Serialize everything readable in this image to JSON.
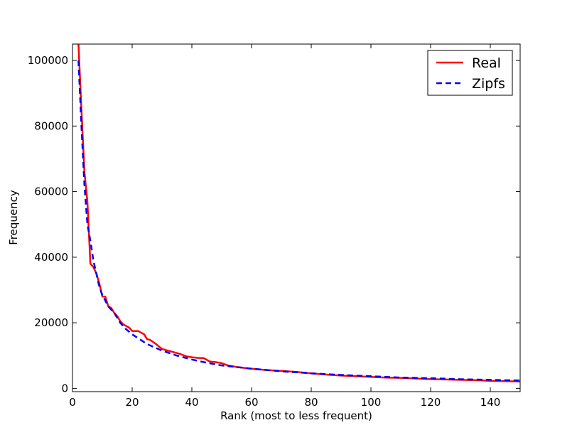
{
  "chart_data": {
    "type": "line",
    "title": "",
    "xlabel": "Rank (most to less frequent)",
    "ylabel": "Frequency",
    "xlim": [
      0,
      150
    ],
    "ylim": [
      -1000,
      105000
    ],
    "xticks": [
      0,
      20,
      40,
      60,
      80,
      100,
      120,
      140
    ],
    "yticks": [
      0,
      20000,
      40000,
      60000,
      80000,
      100000
    ],
    "grid": false,
    "legend_position": "top-right",
    "series": [
      {
        "name": "Real",
        "color": "#ff0000",
        "style": "solid",
        "x": [
          2,
          3,
          4,
          5,
          6,
          7,
          8,
          9,
          10,
          11,
          12,
          13,
          14,
          15,
          16,
          17,
          18,
          19,
          20,
          22,
          24,
          25,
          26,
          28,
          30,
          32,
          34,
          36,
          38,
          40,
          42,
          44,
          46,
          48,
          50,
          52,
          55,
          60,
          65,
          70,
          75,
          80,
          85,
          90,
          95,
          100,
          105,
          110,
          115,
          120,
          125,
          130,
          135,
          140,
          145,
          150
        ],
        "y": [
          105000,
          85000,
          66000,
          57000,
          38000,
          37000,
          35000,
          32000,
          28000,
          28000,
          25000,
          24500,
          23000,
          22000,
          20500,
          19500,
          19000,
          18500,
          17500,
          17500,
          16500,
          15000,
          14800,
          13500,
          12000,
          11500,
          11000,
          10500,
          9800,
          9500,
          9300,
          9200,
          8200,
          8000,
          7700,
          7000,
          6500,
          6000,
          5600,
          5300,
          5000,
          4600,
          4200,
          3900,
          3700,
          3500,
          3300,
          3200,
          3000,
          2800,
          2700,
          2600,
          2500,
          2300,
          2200,
          2100
        ]
      },
      {
        "name": "Zipfs",
        "color": "#0000ff",
        "style": "dashed",
        "x": [
          2,
          3,
          4,
          5,
          6,
          7,
          8,
          9,
          10,
          12,
          14,
          16,
          18,
          20,
          25,
          30,
          35,
          40,
          45,
          50,
          60,
          70,
          80,
          90,
          100,
          110,
          120,
          130,
          140,
          150
        ],
        "y": [
          100000,
          80000,
          62000,
          50000,
          45000,
          39000,
          35000,
          31000,
          28500,
          25000,
          23000,
          20000,
          18000,
          16500,
          13500,
          11500,
          10000,
          8800,
          7800,
          7000,
          6000,
          5200,
          4600,
          4100,
          3700,
          3300,
          3100,
          2800,
          2600,
          2400
        ]
      }
    ]
  }
}
